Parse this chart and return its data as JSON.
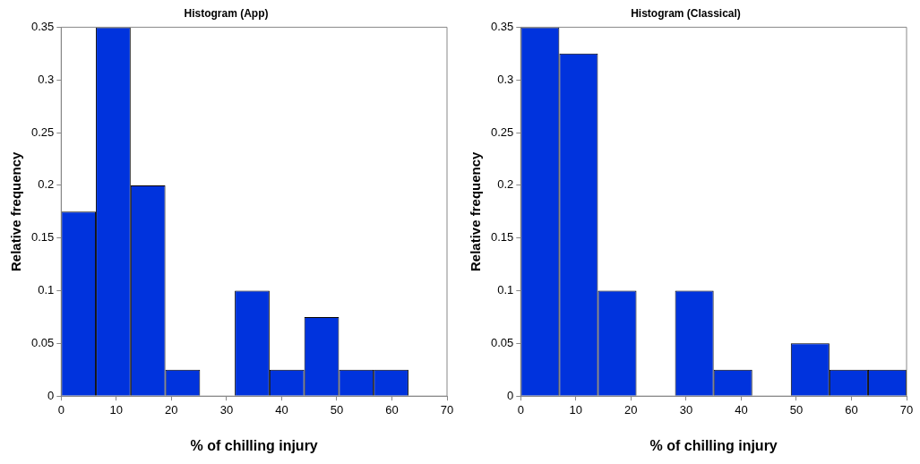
{
  "chart_data": [
    {
      "type": "histogram",
      "title": "Histogram (App)",
      "xlabel": "% of chilling injury",
      "ylabel": "Relative frequency",
      "bins": [
        0,
        6.3,
        12.6,
        18.9,
        25.2,
        31.5,
        37.8,
        44.1,
        50.4,
        56.7,
        63
      ],
      "values": [
        0.175,
        0.35,
        0.2,
        0.025,
        0,
        0.1,
        0.025,
        0.075,
        0.025,
        0.025
      ],
      "color": "#0033dd",
      "xlim": [
        0,
        70
      ],
      "xticks": [
        0,
        10,
        20,
        30,
        40,
        50,
        60,
        70
      ],
      "ylim": [
        0,
        0.35
      ],
      "yticks": [
        0,
        0.05,
        0.1,
        0.15,
        0.2,
        0.25,
        0.3,
        0.35
      ],
      "grid": false,
      "legend": false
    },
    {
      "type": "histogram",
      "title": "Histogram (Classical)",
      "xlabel": "% of chilling injury",
      "ylabel": "Relative frequency",
      "bins": [
        0,
        7,
        14,
        21,
        28,
        35,
        42,
        49,
        56,
        63,
        70
      ],
      "values": [
        0.35,
        0.325,
        0.1,
        0,
        0.1,
        0.025,
        0,
        0.05,
        0.025,
        0.025
      ],
      "color": "#0033dd",
      "xlim": [
        0,
        70
      ],
      "xticks": [
        0,
        10,
        20,
        30,
        40,
        50,
        60,
        70
      ],
      "ylim": [
        0,
        0.35
      ],
      "yticks": [
        0,
        0.05,
        0.1,
        0.15,
        0.2,
        0.25,
        0.3,
        0.35
      ],
      "grid": false,
      "legend": false
    }
  ]
}
